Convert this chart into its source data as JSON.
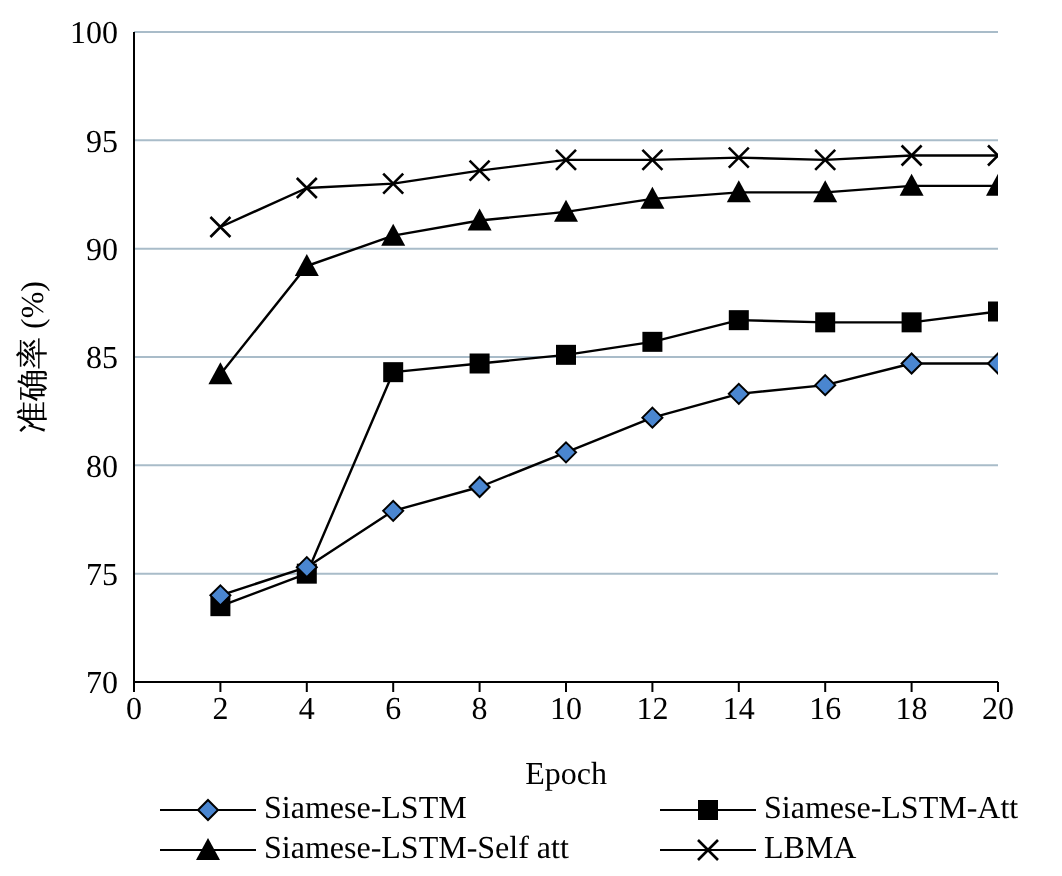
{
  "chart_data": {
    "type": "line",
    "xlabel": "Epoch",
    "ylabel": "准确率 (%)",
    "x": [
      2,
      4,
      6,
      8,
      10,
      12,
      14,
      16,
      18,
      20
    ],
    "xlim": [
      0,
      20
    ],
    "xticks": [
      0,
      2,
      4,
      6,
      8,
      10,
      12,
      14,
      16,
      18,
      20
    ],
    "ylim": [
      70,
      100
    ],
    "yticks": [
      70,
      75,
      80,
      85,
      90,
      95,
      100
    ],
    "grid": "y",
    "legend": "bottom",
    "series": [
      {
        "name": "Siamese-LSTM",
        "color": "#4a86d0",
        "marker": "diamond",
        "values": [
          74.0,
          75.3,
          77.9,
          79.0,
          80.6,
          82.2,
          83.3,
          83.7,
          84.7,
          84.7
        ]
      },
      {
        "name": "Siamese-LSTM-Att",
        "color": "#000000",
        "marker": "square",
        "values": [
          73.5,
          75.0,
          84.3,
          84.7,
          85.1,
          85.7,
          86.7,
          86.6,
          86.6,
          87.1
        ]
      },
      {
        "name": "Siamese-LSTM-Self att",
        "color": "#000000",
        "marker": "triangle",
        "values": [
          84.2,
          89.2,
          90.6,
          91.3,
          91.7,
          92.3,
          92.6,
          92.6,
          92.9,
          92.9
        ]
      },
      {
        "name": "LBMA",
        "color": "#000000",
        "marker": "cross",
        "values": [
          91.0,
          92.8,
          93.0,
          93.6,
          94.1,
          94.1,
          94.2,
          94.1,
          94.3,
          94.3
        ]
      }
    ]
  }
}
